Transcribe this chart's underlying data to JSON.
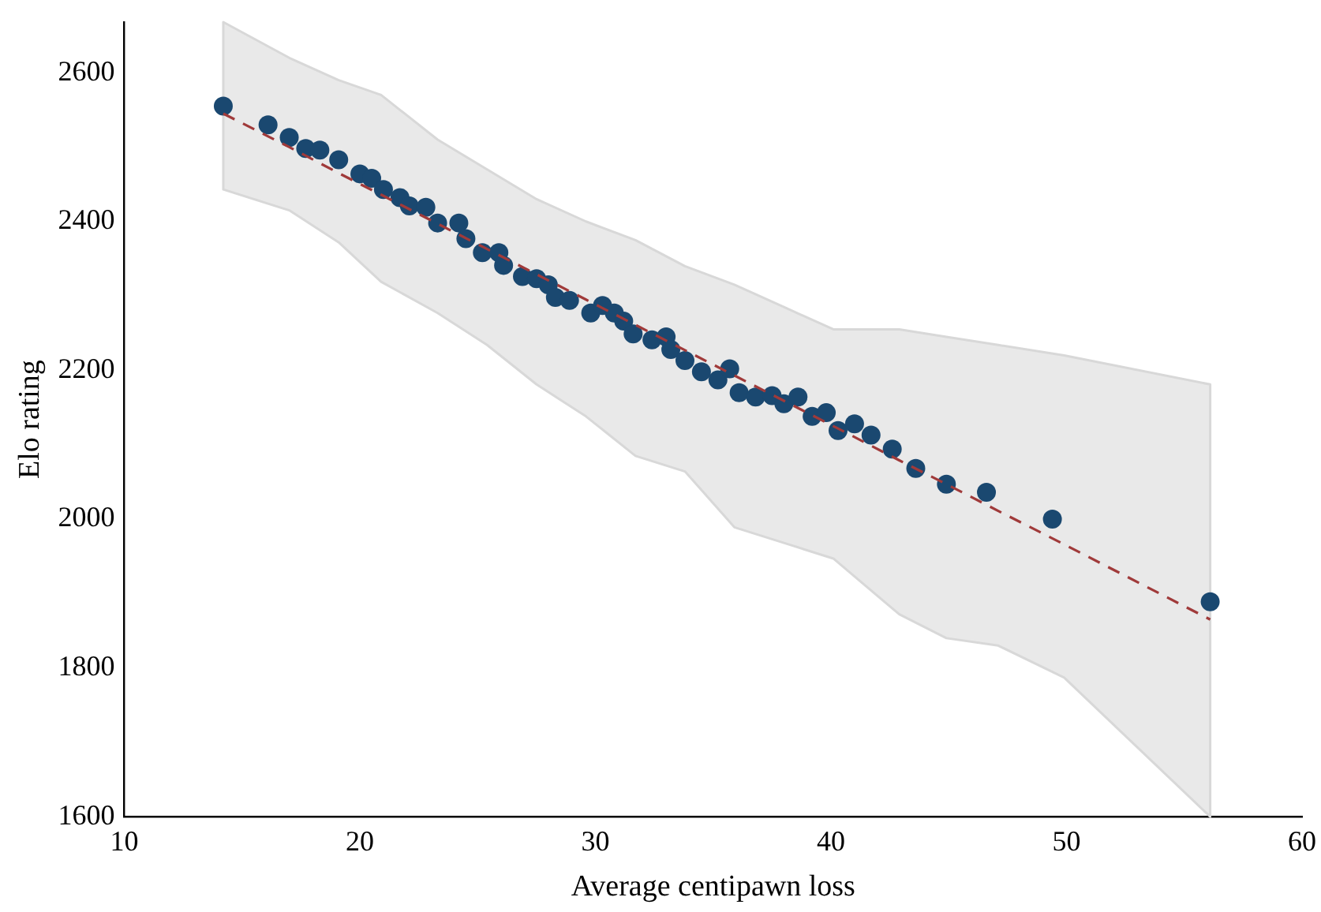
{
  "chart_data": {
    "type": "scatter",
    "xlabel": "Average centipawn loss",
    "ylabel": "Elo rating",
    "xlim": [
      10,
      60
    ],
    "xticks": [
      10,
      20,
      30,
      40,
      50,
      60
    ],
    "ylim": [
      1600,
      2668
    ],
    "yticks": [
      1600,
      1800,
      2000,
      2200,
      2400,
      2600
    ],
    "grid": false,
    "legend": false,
    "marker": "circle",
    "series": [
      {
        "type": "line",
        "color": "#a03a3a",
        "line_style": "dashed",
        "marker": "none",
        "x": [
          14.2,
          17,
          19.1,
          20.9,
          23.3,
          25.4,
          27.5,
          29.6,
          31.7,
          33.8,
          35.9,
          38,
          40.1,
          42.9,
          44.9,
          47.1,
          49.9,
          56.1
        ],
        "values": [
          2545,
          2500,
          2465,
          2436,
          2397,
          2363,
          2329,
          2295,
          2261,
          2227,
          2193,
          2159,
          2125,
          2079,
          2047,
          2011,
          1966,
          1865
        ],
        "lower": [
          2443,
          2415,
          2372,
          2319,
          2277,
          2234,
          2181,
          2138,
          2085,
          2064,
          1989,
          1968,
          1947,
          1872,
          1840,
          1830,
          1787,
          1600
        ],
        "upper": [
          2668,
          2620,
          2590,
          2570,
          2510,
          2470,
          2430,
          2400,
          2375,
          2340,
          2315,
          2285,
          2255,
          2255,
          2245,
          2234,
          2220,
          2181
        ]
      },
      {
        "color": "#1a4870",
        "x": [
          14.2,
          16.1,
          17.0,
          17.7,
          18.3,
          19.1,
          20.0,
          20.5,
          21.0,
          21.7,
          22.1,
          22.8,
          23.3,
          24.2,
          24.5,
          25.2,
          25.9,
          26.1,
          26.9,
          27.5,
          28.0,
          28.3,
          28.9,
          29.8,
          30.3,
          30.8,
          31.2,
          31.6,
          32.4,
          33.0,
          33.2,
          33.8,
          34.5,
          35.2,
          35.7,
          36.1,
          36.8,
          37.5,
          38.0,
          38.6,
          39.2,
          39.8,
          40.3,
          41.0,
          41.7,
          42.6,
          43.6,
          44.9,
          46.6,
          49.4,
          56.1
        ],
        "values": [
          2555,
          2530,
          2513,
          2498,
          2496,
          2483,
          2464,
          2458,
          2443,
          2432,
          2421,
          2419,
          2398,
          2398,
          2377,
          2358,
          2358,
          2341,
          2326,
          2323,
          2315,
          2298,
          2294,
          2277,
          2287,
          2277,
          2266,
          2249,
          2241,
          2245,
          2228,
          2213,
          2198,
          2187,
          2202,
          2170,
          2164,
          2166,
          2155,
          2164,
          2138,
          2143,
          2119,
          2128,
          2113,
          2094,
          2068,
          2047,
          2036,
          2000,
          1889
        ]
      }
    ]
  }
}
